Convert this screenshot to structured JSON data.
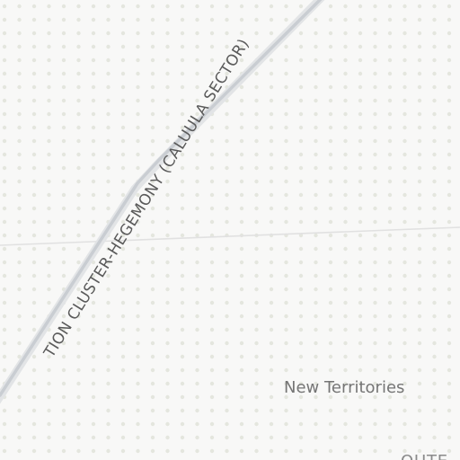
{
  "map": {
    "route_label": "TION CLUSTER-HEGEMONY (CALUULA SECTOR)",
    "region_label": "New Territories",
    "partial_label": "OUTE",
    "colors": {
      "background": "#f8f8f7",
      "dots": "#e4e6de",
      "route_line": "#c9cdd2",
      "route_shadow": "#e2e4e6",
      "grid_line": "#e1e1e1",
      "route_text": "#5a5a5a",
      "region_text": "#757575",
      "partial_text": "#8a8a8a"
    }
  }
}
